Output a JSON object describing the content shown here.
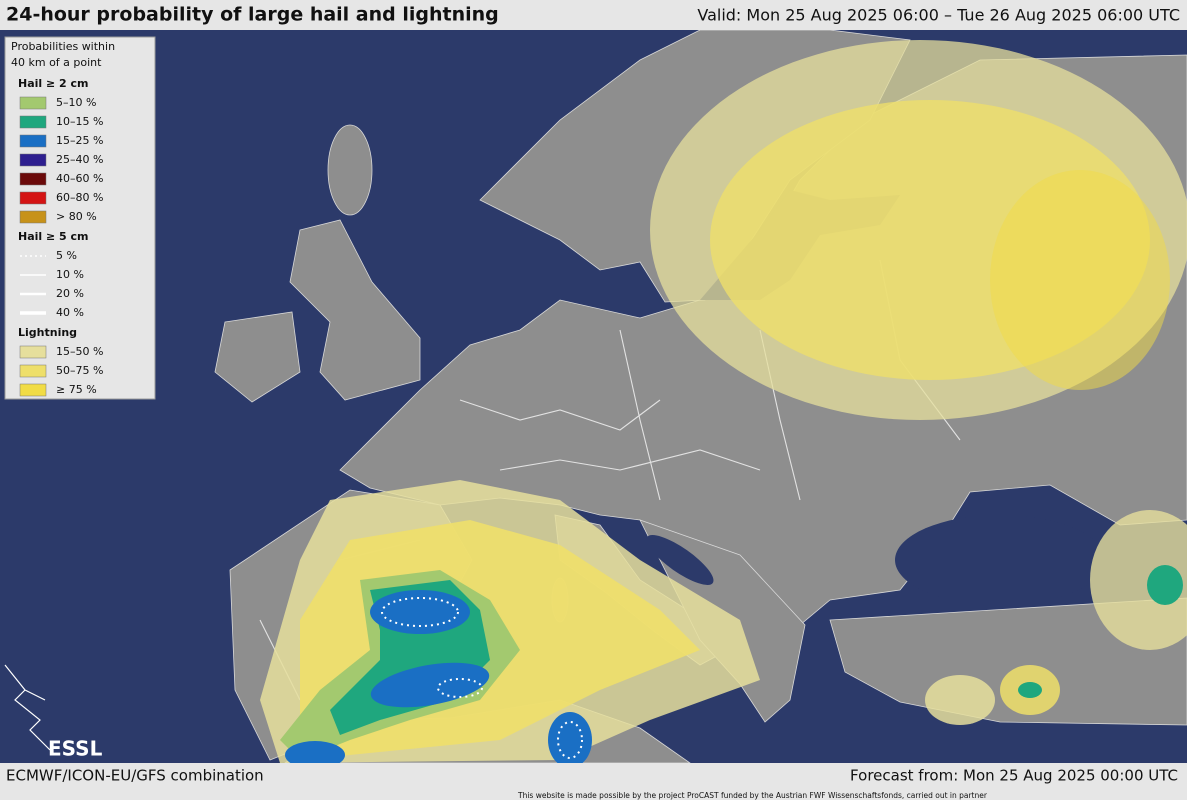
{
  "header": {
    "title": "24-hour probability of large hail and lightning",
    "valid": "Valid: Mon 25 Aug 2025 06:00 – Tue 26 Aug 2025 06:00 UTC"
  },
  "legend": {
    "intro": [
      "Probabilities within",
      "40 km of a point"
    ],
    "sections": [
      {
        "title": "Hail ≥ 2 cm",
        "items": [
          {
            "label": "5–10 %",
            "color": "#a3c96f"
          },
          {
            "label": "10–15 %",
            "color": "#1fa77e"
          },
          {
            "label": "15–25 %",
            "color": "#1a6fc4"
          },
          {
            "label": "25–40 %",
            "color": "#2e1f8f"
          },
          {
            "label": "40–60 %",
            "color": "#6b0a0a"
          },
          {
            "label": "60–80 %",
            "color": "#d41414"
          },
          {
            "label": "> 80 %",
            "color": "#c7921a"
          }
        ]
      },
      {
        "title": "Hail ≥ 5 cm",
        "items": [
          {
            "label": "5 %",
            "color": "#ffffff",
            "line_width": 1.5,
            "dashed": true
          },
          {
            "label": "10 %",
            "color": "#ffffff",
            "line_width": 1.5
          },
          {
            "label": "20 %",
            "color": "#ffffff",
            "line_width": 2.5
          },
          {
            "label": "40 %",
            "color": "#ffffff",
            "line_width": 3.5
          }
        ]
      },
      {
        "title": "Lightning",
        "items": [
          {
            "label": "15–50 %",
            "color": "#e6df9c"
          },
          {
            "label": "50–75 %",
            "color": "#eedf6a"
          },
          {
            "label": "≥ 75 %",
            "color": "#f1dc45"
          }
        ]
      }
    ]
  },
  "logo": "ESSL",
  "footer": {
    "left": "ECMWF/ICON-EU/GFS combination",
    "right": "Forecast from: Mon 25 Aug 2025 00:00 UTC",
    "credit": "This website is made possible by the project ProCAST funded by the Austrian FWF Wissenschaftsfonds, carried out in partner"
  }
}
